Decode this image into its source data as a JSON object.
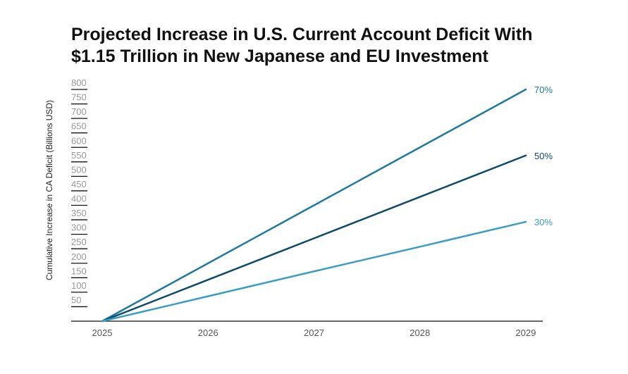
{
  "chart_data": {
    "type": "line",
    "title_lines": [
      "Projected Increase in U.S. Current Account Deficit With",
      "$1.15 Trillion in New Japanese and EU Investment"
    ],
    "xlabel": "",
    "ylabel": "Cumulative Increase in CA Deficit (Billions USD)",
    "x": [
      "2025",
      "2026",
      "2027",
      "2028",
      "2029"
    ],
    "ylim": [
      0,
      800
    ],
    "yticks": [
      50,
      100,
      150,
      200,
      250,
      300,
      350,
      400,
      450,
      500,
      550,
      600,
      650,
      700,
      750,
      800
    ],
    "series": [
      {
        "name": "70%",
        "label": "70%",
        "color": "#1f7a9e",
        "values": [
          0,
          200,
          400,
          600,
          800
        ]
      },
      {
        "name": "50%",
        "label": "50%",
        "color": "#0e4a6b",
        "values": [
          0,
          143,
          286,
          429,
          572
        ]
      },
      {
        "name": "30%",
        "label": "30%",
        "color": "#3a9ec4",
        "values": [
          0,
          86,
          172,
          257,
          343
        ]
      }
    ]
  }
}
